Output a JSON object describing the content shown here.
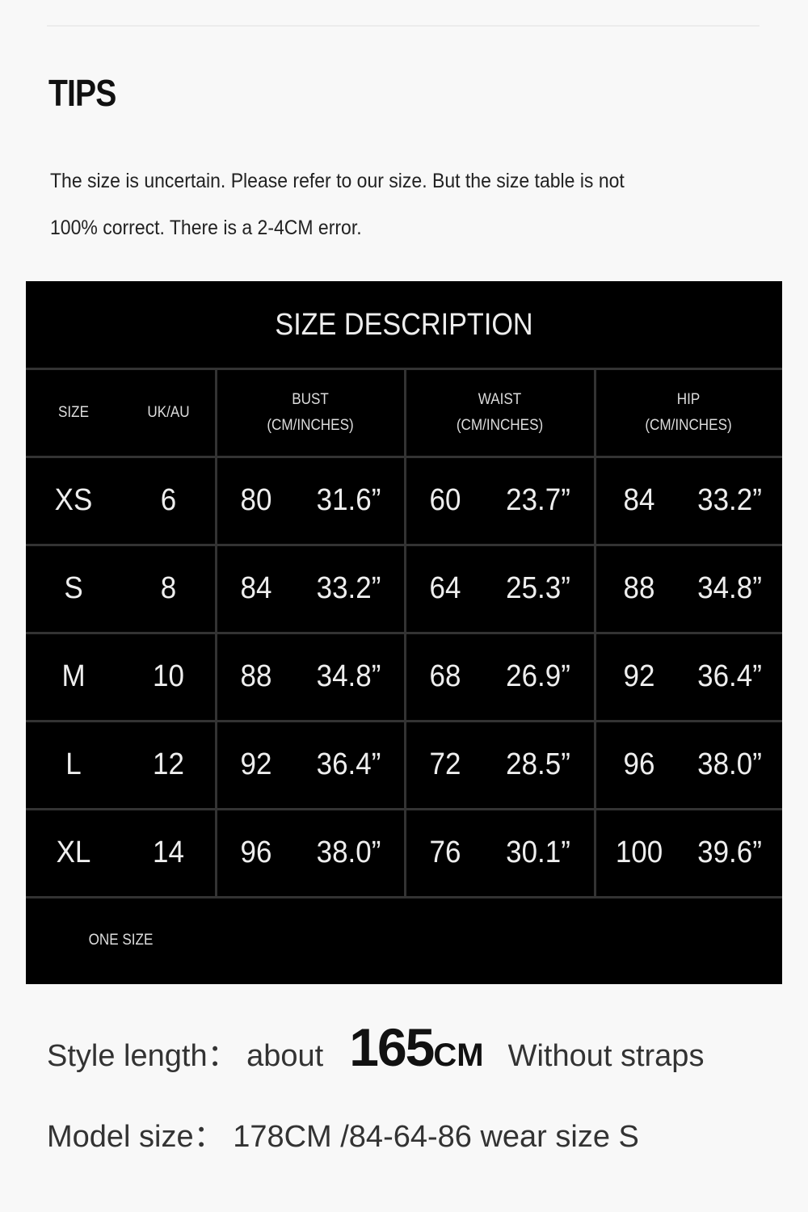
{
  "tips": {
    "title": "TIPS",
    "line1": "The size is uncertain. Please refer to our size. But the size table is not",
    "line2": "100% correct. There is a 2-4CM error."
  },
  "size_table": {
    "title": "SIZE DESCRIPTION",
    "headers": {
      "size": "SIZE",
      "uk_au": "UK/AU",
      "bust": "BUST",
      "waist": "WAIST",
      "hip": "HIP",
      "unit": "(CM/INCHES)"
    },
    "rows": [
      {
        "size": "XS",
        "uk_au": "6",
        "bust_cm": "80",
        "bust_in": "31.6”",
        "waist_cm": "60",
        "waist_in": "23.7”",
        "hip_cm": "84",
        "hip_in": "33.2”"
      },
      {
        "size": "S",
        "uk_au": "8",
        "bust_cm": "84",
        "bust_in": "33.2”",
        "waist_cm": "64",
        "waist_in": "25.3”",
        "hip_cm": "88",
        "hip_in": "34.8”"
      },
      {
        "size": "M",
        "uk_au": "10",
        "bust_cm": "88",
        "bust_in": "34.8”",
        "waist_cm": "68",
        "waist_in": "26.9”",
        "hip_cm": "92",
        "hip_in": "36.4”"
      },
      {
        "size": "L",
        "uk_au": "12",
        "bust_cm": "92",
        "bust_in": "36.4”",
        "waist_cm": "72",
        "waist_in": "28.5”",
        "hip_cm": "96",
        "hip_in": "38.0”"
      },
      {
        "size": "XL",
        "uk_au": "14",
        "bust_cm": "96",
        "bust_in": "38.0”",
        "waist_cm": "76",
        "waist_in": "30.1”",
        "hip_cm": "100",
        "hip_in": "39.6”"
      }
    ],
    "footer": "ONE SIZE"
  },
  "style_length": {
    "label": "Style length： about",
    "value": "165",
    "unit": "CM",
    "note": "Without straps"
  },
  "model_size": "Model size： 178CM /84-64-86 wear size S"
}
